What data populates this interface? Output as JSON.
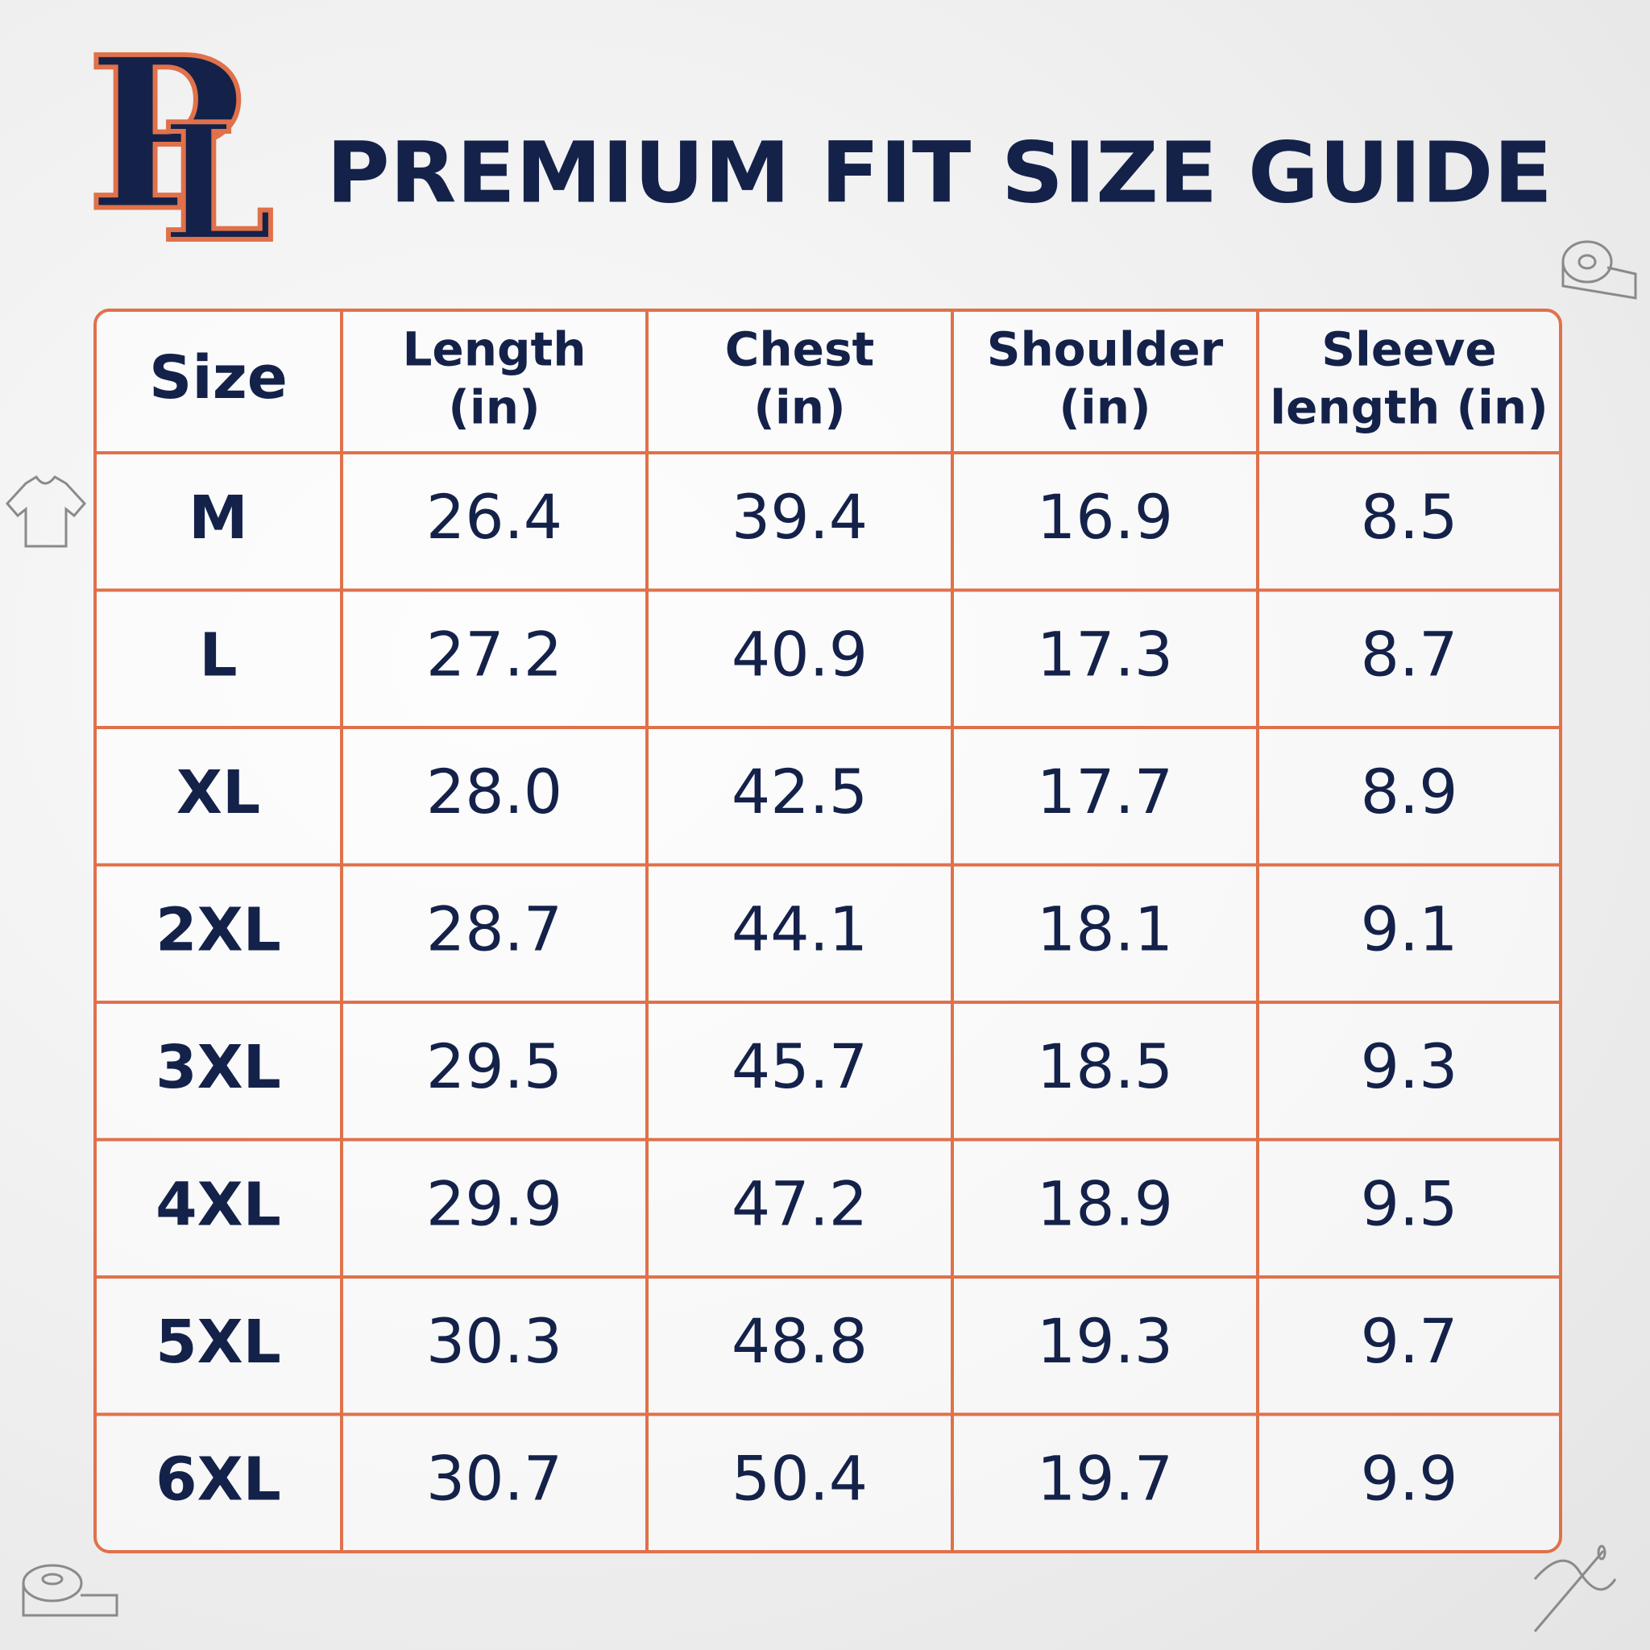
{
  "logo": {
    "letters": [
      "P",
      "L"
    ]
  },
  "header": {
    "title": "PREMIUM FIT SIZE GUIDE"
  },
  "table": {
    "columns": [
      [
        "Size"
      ],
      [
        "Length",
        "(in)"
      ],
      [
        "Chest",
        "(in)"
      ],
      [
        "Shoulder",
        "(in)"
      ],
      [
        "Sleeve",
        "length (in)"
      ]
    ],
    "rows": [
      [
        "M",
        "26.4",
        "39.4",
        "16.9",
        "8.5"
      ],
      [
        "L",
        "27.2",
        "40.9",
        "17.3",
        "8.7"
      ],
      [
        "XL",
        "28.0",
        "42.5",
        "17.7",
        "8.9"
      ],
      [
        "2XL",
        "28.7",
        "44.1",
        "18.1",
        "9.1"
      ],
      [
        "3XL",
        "29.5",
        "45.7",
        "18.5",
        "9.3"
      ],
      [
        "4XL",
        "29.9",
        "47.2",
        "18.9",
        "9.5"
      ],
      [
        "5XL",
        "30.3",
        "48.8",
        "19.3",
        "9.7"
      ],
      [
        "6XL",
        "30.7",
        "50.4",
        "19.7",
        "9.9"
      ]
    ]
  }
}
